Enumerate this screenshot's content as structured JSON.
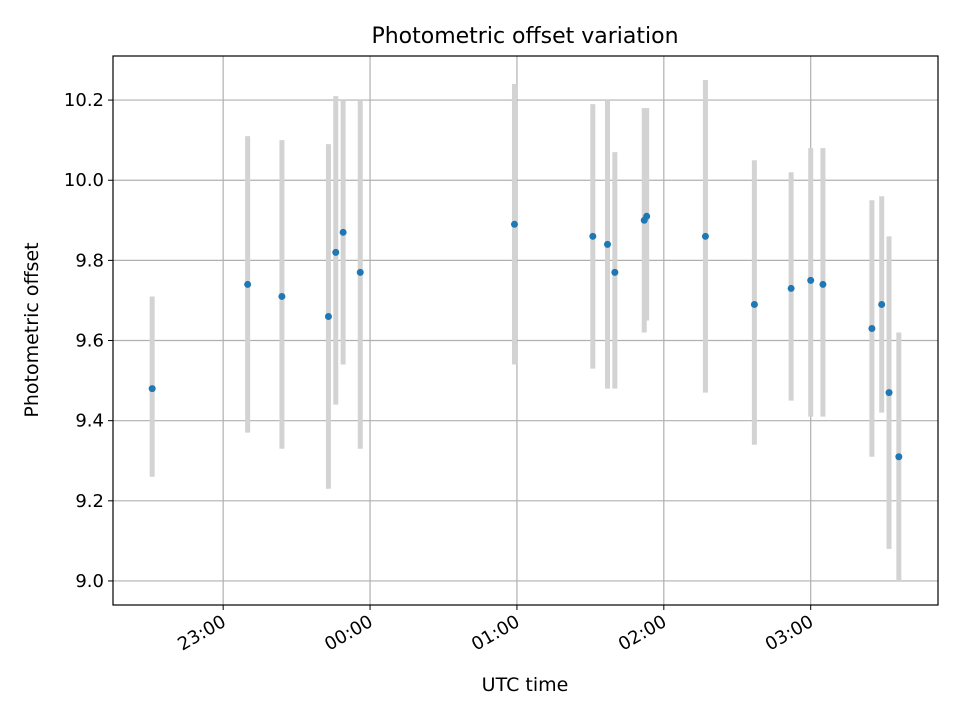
{
  "chart_data": {
    "type": "scatter",
    "title": "Photometric offset variation",
    "xlabel": "UTC time",
    "ylabel": "Photometric offset",
    "grid": true,
    "xlim": [
      "22:15",
      "03:52"
    ],
    "ylim": [
      8.94,
      10.31
    ],
    "x_ticks": [
      "23:00",
      "00:00",
      "01:00",
      "02:00",
      "03:00"
    ],
    "y_ticks": [
      "9.0",
      "9.2",
      "9.4",
      "9.6",
      "9.8",
      "10.0",
      "10.2"
    ],
    "point_color": "#1f77b4",
    "errorbar_color": "#d3d3d3",
    "points": [
      {
        "x": "22:31",
        "y": 9.48,
        "ylo": 9.26,
        "yhi": 9.71
      },
      {
        "x": "23:10",
        "y": 9.74,
        "ylo": 9.37,
        "yhi": 10.11
      },
      {
        "x": "23:24",
        "y": 9.71,
        "ylo": 9.33,
        "yhi": 10.1
      },
      {
        "x": "23:43",
        "y": 9.66,
        "ylo": 9.23,
        "yhi": 10.09
      },
      {
        "x": "23:46",
        "y": 9.82,
        "ylo": 9.44,
        "yhi": 10.21
      },
      {
        "x": "23:49",
        "y": 9.87,
        "ylo": 9.54,
        "yhi": 10.2
      },
      {
        "x": "23:56",
        "y": 9.77,
        "ylo": 9.33,
        "yhi": 10.2
      },
      {
        "x": "00:59",
        "y": 9.89,
        "ylo": 9.54,
        "yhi": 10.24
      },
      {
        "x": "01:31",
        "y": 9.86,
        "ylo": 9.53,
        "yhi": 10.19
      },
      {
        "x": "01:37",
        "y": 9.84,
        "ylo": 9.48,
        "yhi": 10.2
      },
      {
        "x": "01:40",
        "y": 9.77,
        "ylo": 9.48,
        "yhi": 10.07
      },
      {
        "x": "01:52",
        "y": 9.9,
        "ylo": 9.62,
        "yhi": 10.18
      },
      {
        "x": "01:53",
        "y": 9.91,
        "ylo": 9.65,
        "yhi": 10.18
      },
      {
        "x": "02:17",
        "y": 9.86,
        "ylo": 9.47,
        "yhi": 10.25
      },
      {
        "x": "02:37",
        "y": 9.69,
        "ylo": 9.34,
        "yhi": 10.05
      },
      {
        "x": "02:52",
        "y": 9.73,
        "ylo": 9.45,
        "yhi": 10.02
      },
      {
        "x": "03:00",
        "y": 9.75,
        "ylo": 9.41,
        "yhi": 10.08
      },
      {
        "x": "03:05",
        "y": 9.74,
        "ylo": 9.41,
        "yhi": 10.08
      },
      {
        "x": "03:25",
        "y": 9.63,
        "ylo": 9.31,
        "yhi": 9.95
      },
      {
        "x": "03:29",
        "y": 9.69,
        "ylo": 9.42,
        "yhi": 9.96
      },
      {
        "x": "03:32",
        "y": 9.47,
        "ylo": 9.08,
        "yhi": 9.86
      },
      {
        "x": "03:36",
        "y": 9.31,
        "ylo": 9.0,
        "yhi": 9.62
      }
    ]
  }
}
